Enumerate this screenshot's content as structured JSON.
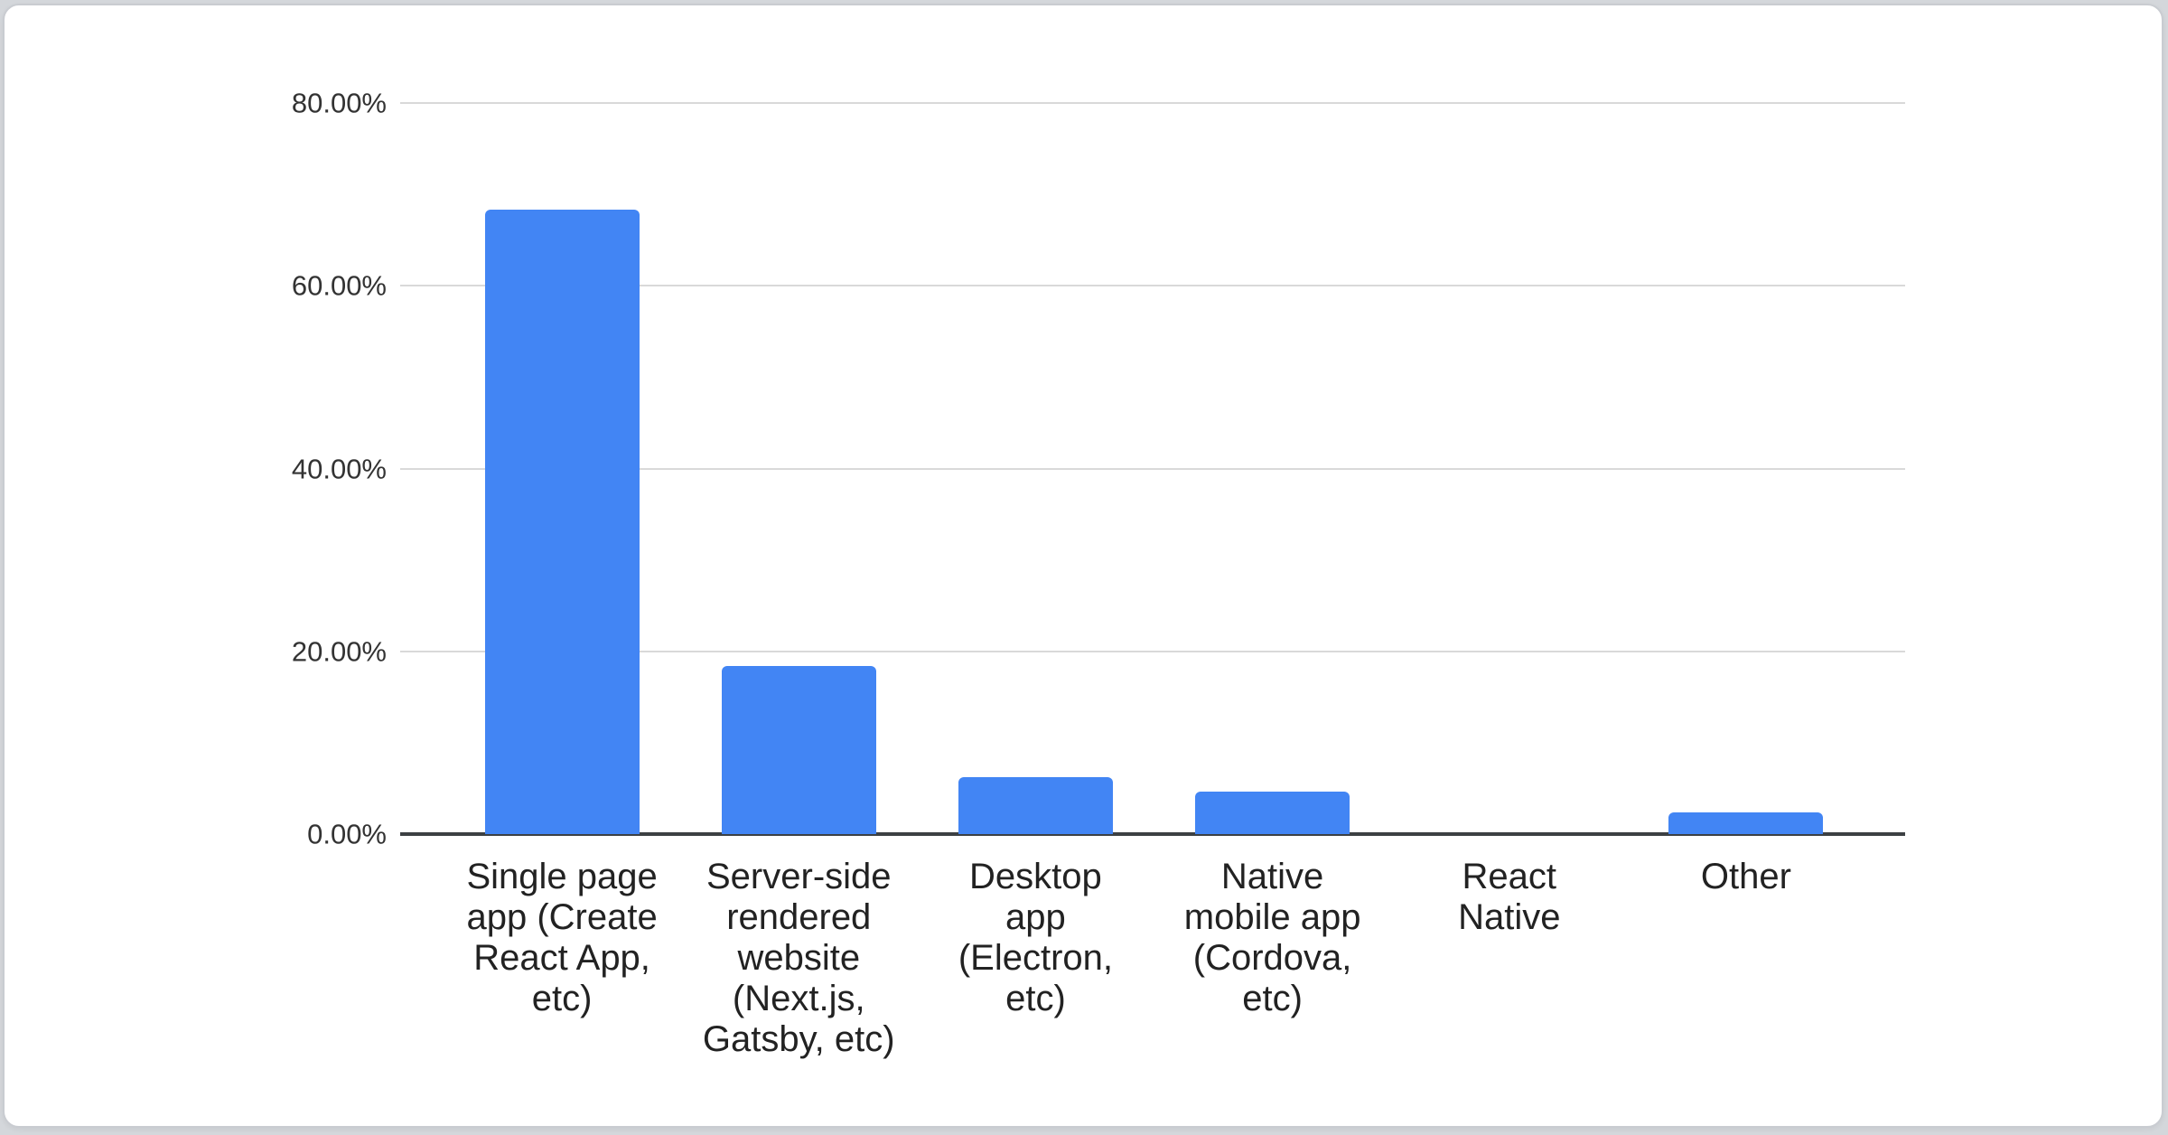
{
  "card": {
    "background": "#ffffff",
    "border_color": "#c9ccd1"
  },
  "chart_data": {
    "type": "bar",
    "title": "",
    "xlabel": "",
    "ylabel": "",
    "categories": [
      "Single page app (Create React App, etc)",
      "Server-side rendered website (Next.js, Gatsby, etc)",
      "Desktop app (Electron, etc)",
      "Native mobile app (Cordova, etc)",
      "React Native",
      "Other"
    ],
    "category_lines": [
      "Single page\napp (Create\nReact App,\netc)",
      "Server-side\nrendered\nwebsite\n(Next.js,\nGatsby, etc)",
      "Desktop\napp\n(Electron,\netc)",
      "Native\nmobile app\n(Cordova,\netc)",
      "React\nNative",
      "Other"
    ],
    "values": [
      68.2,
      18.4,
      6.2,
      4.6,
      0,
      2.4
    ],
    "value_unit": "%",
    "ylim": [
      0,
      80
    ],
    "y_ticks": [
      "80.00%",
      "60.00%",
      "40.00%",
      "20.00%",
      "0.00%"
    ],
    "grid": "horizontal",
    "legend": "none",
    "bar_color": "#4285f4",
    "gridline_color": "#d9d9d9",
    "axis_line_color": "#3c4043"
  }
}
